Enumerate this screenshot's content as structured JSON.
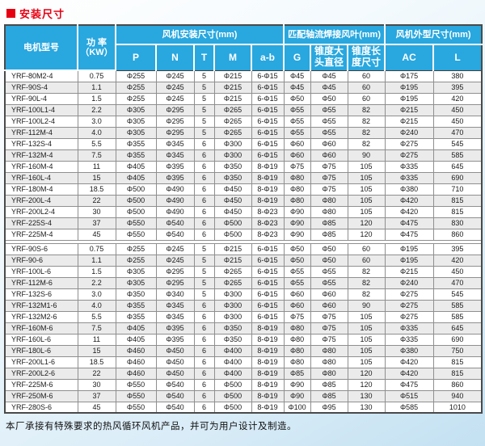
{
  "title": "安装尺寸",
  "colors": {
    "accent_red": "#e60012",
    "header_blue": "#29a7df",
    "row_alt": "#ebebeb",
    "border_dark": "#4a4a4a",
    "border_light": "#8f8f8f"
  },
  "table": {
    "header": {
      "model": "电机型号",
      "power_line1": "功 率",
      "power_line2": "（KW）",
      "group_install": "风机安装尺寸(mm)",
      "group_blade": "匹配轴流焊接风叶(mm)",
      "group_outline": "风机外型尺寸(mm)",
      "sub": [
        "P",
        "N",
        "T",
        "M",
        "a-b",
        "G",
        "锥度大头直径",
        "锥度长度尺寸",
        "AC",
        "L"
      ]
    },
    "sections": [
      {
        "rows": [
          [
            "YRF-80M2-4",
            "0.75",
            "Φ255",
            "Φ245",
            "5",
            "Φ215",
            "6-Φ15",
            "Φ45",
            "Φ45",
            "60",
            "Φ175",
            "380"
          ],
          [
            "YRF-90S-4",
            "1.1",
            "Φ255",
            "Φ245",
            "5",
            "Φ215",
            "6-Φ15",
            "Φ45",
            "Φ45",
            "60",
            "Φ195",
            "395"
          ],
          [
            "YRF-90L-4",
            "1.5",
            "Φ255",
            "Φ245",
            "5",
            "Φ215",
            "6-Φ15",
            "Φ50",
            "Φ50",
            "60",
            "Φ195",
            "420"
          ],
          [
            "YRF-100L1-4",
            "2.2",
            "Φ305",
            "Φ295",
            "5",
            "Φ265",
            "6-Φ15",
            "Φ55",
            "Φ55",
            "82",
            "Φ215",
            "450"
          ],
          [
            "YRF-100L2-4",
            "3.0",
            "Φ305",
            "Φ295",
            "5",
            "Φ265",
            "6-Φ15",
            "Φ55",
            "Φ55",
            "82",
            "Φ215",
            "450"
          ],
          [
            "YRF-112M-4",
            "4.0",
            "Φ305",
            "Φ295",
            "5",
            "Φ265",
            "6-Φ15",
            "Φ55",
            "Φ55",
            "82",
            "Φ240",
            "470"
          ],
          [
            "YRF-132S-4",
            "5.5",
            "Φ355",
            "Φ345",
            "6",
            "Φ300",
            "6-Φ15",
            "Φ60",
            "Φ60",
            "82",
            "Φ275",
            "545"
          ],
          [
            "YRF-132M-4",
            "7.5",
            "Φ355",
            "Φ345",
            "6",
            "Φ300",
            "6-Φ15",
            "Φ60",
            "Φ60",
            "90",
            "Φ275",
            "585"
          ],
          [
            "YRF-160M-4",
            "11",
            "Φ405",
            "Φ395",
            "6",
            "Φ350",
            "8-Φ19",
            "Φ75",
            "Φ75",
            "105",
            "Φ335",
            "645"
          ],
          [
            "YRF-160L-4",
            "15",
            "Φ405",
            "Φ395",
            "6",
            "Φ350",
            "8-Φ19",
            "Φ80",
            "Φ75",
            "105",
            "Φ335",
            "690"
          ],
          [
            "YRF-180M-4",
            "18.5",
            "Φ500",
            "Φ490",
            "6",
            "Φ450",
            "8-Φ19",
            "Φ80",
            "Φ75",
            "105",
            "Φ380",
            "710"
          ],
          [
            "YRF-200L-4",
            "22",
            "Φ500",
            "Φ490",
            "6",
            "Φ450",
            "8-Φ19",
            "Φ80",
            "Φ80",
            "105",
            "Φ420",
            "815"
          ],
          [
            "YRF-200L2-4",
            "30",
            "Φ500",
            "Φ490",
            "6",
            "Φ450",
            "8-Φ23",
            "Φ90",
            "Φ80",
            "105",
            "Φ420",
            "815"
          ],
          [
            "YRF-225S-4",
            "37",
            "Φ550",
            "Φ540",
            "6",
            "Φ500",
            "8-Φ23",
            "Φ90",
            "Φ85",
            "120",
            "Φ475",
            "830"
          ],
          [
            "YRF-225M-4",
            "45",
            "Φ550",
            "Φ540",
            "6",
            "Φ500",
            "8-Φ23",
            "Φ90",
            "Φ85",
            "120",
            "Φ475",
            "860"
          ]
        ]
      },
      {
        "rows": [
          [
            "YRF-90S-6",
            "0.75",
            "Φ255",
            "Φ245",
            "5",
            "Φ215",
            "6-Φ15",
            "Φ50",
            "Φ50",
            "60",
            "Φ195",
            "395"
          ],
          [
            "YRF-90-6",
            "1.1",
            "Φ255",
            "Φ245",
            "5",
            "Φ215",
            "6-Φ15",
            "Φ50",
            "Φ50",
            "60",
            "Φ195",
            "420"
          ],
          [
            "YRF-100L-6",
            "1.5",
            "Φ305",
            "Φ295",
            "5",
            "Φ265",
            "6-Φ15",
            "Φ55",
            "Φ55",
            "82",
            "Φ215",
            "450"
          ],
          [
            "YRF-112M-6",
            "2.2",
            "Φ305",
            "Φ295",
            "5",
            "Φ265",
            "6-Φ15",
            "Φ55",
            "Φ55",
            "82",
            "Φ240",
            "470"
          ],
          [
            "YRF-132S-6",
            "3.0",
            "Φ350",
            "Φ340",
            "5",
            "Φ300",
            "6-Φ15",
            "Φ60",
            "Φ60",
            "82",
            "Φ275",
            "545"
          ],
          [
            "YRF-132M1-6",
            "4.0",
            "Φ355",
            "Φ345",
            "6",
            "Φ300",
            "6-Φ15",
            "Φ60",
            "Φ60",
            "90",
            "Φ275",
            "585"
          ],
          [
            "YRF-132M2-6",
            "5.5",
            "Φ355",
            "Φ345",
            "6",
            "Φ300",
            "6-Φ15",
            "Φ75",
            "Φ75",
            "105",
            "Φ275",
            "585"
          ],
          [
            "YRF-160M-6",
            "7.5",
            "Φ405",
            "Φ395",
            "6",
            "Φ350",
            "8-Φ19",
            "Φ80",
            "Φ75",
            "105",
            "Φ335",
            "645"
          ],
          [
            "YRF-160L-6",
            "11",
            "Φ405",
            "Φ395",
            "6",
            "Φ350",
            "8-Φ19",
            "Φ80",
            "Φ75",
            "105",
            "Φ335",
            "690"
          ],
          [
            "YRF-180L-6",
            "15",
            "Φ460",
            "Φ450",
            "6",
            "Φ400",
            "8-Φ19",
            "Φ80",
            "Φ80",
            "105",
            "Φ380",
            "750"
          ],
          [
            "YRF-200L1-6",
            "18.5",
            "Φ460",
            "Φ450",
            "6",
            "Φ400",
            "8-Φ19",
            "Φ80",
            "Φ80",
            "105",
            "Φ420",
            "815"
          ],
          [
            "YRF-200L2-6",
            "22",
            "Φ460",
            "Φ450",
            "6",
            "Φ400",
            "8-Φ19",
            "Φ85",
            "Φ80",
            "120",
            "Φ420",
            "815"
          ],
          [
            "YRF-225M-6",
            "30",
            "Φ550",
            "Φ540",
            "6",
            "Φ500",
            "8-Φ19",
            "Φ90",
            "Φ85",
            "120",
            "Φ475",
            "860"
          ],
          [
            "YRF-250M-6",
            "37",
            "Φ550",
            "Φ540",
            "6",
            "Φ500",
            "8-Φ19",
            "Φ90",
            "Φ85",
            "130",
            "Φ515",
            "940"
          ],
          [
            "YRF-280S-6",
            "45",
            "Φ550",
            "Φ540",
            "6",
            "Φ500",
            "8-Φ19",
            "Φ100",
            "Φ95",
            "130",
            "Φ585",
            "1010"
          ]
        ]
      }
    ]
  },
  "footer_note": "本厂承接有特殊要求的热风循环风机产品，并可为用户设计及制造。"
}
